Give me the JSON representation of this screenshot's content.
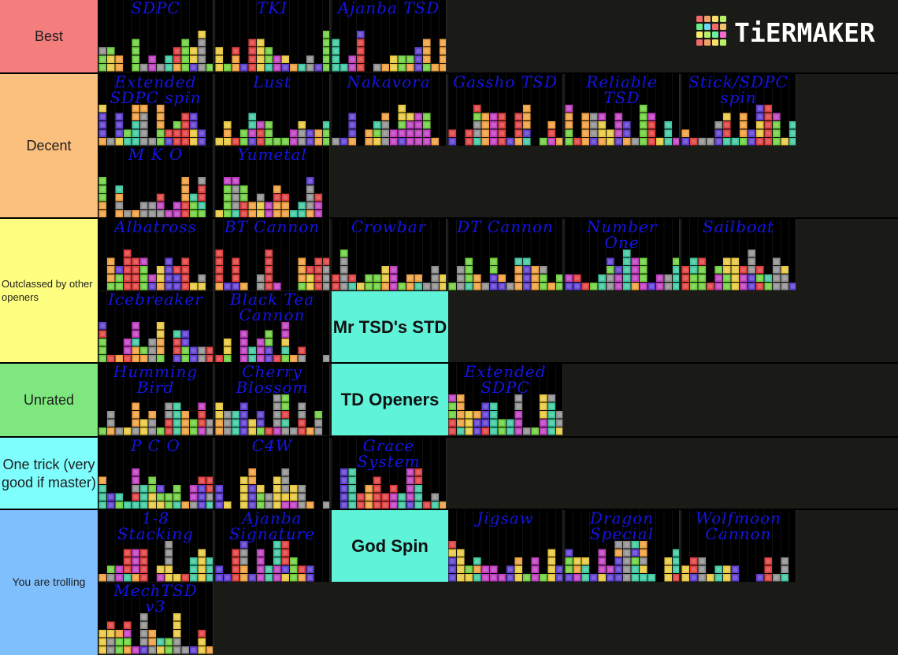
{
  "logo": {
    "text": "TiERMAKER",
    "grid_colors": [
      "#f06a6a",
      "#f0a06a",
      "#f6e06a",
      "#b8f06a",
      "#6af08a",
      "#6ad8f0",
      "#f06a6a",
      "#f0c06a",
      "#f6f06a",
      "#b8f06a",
      "#6af0a0",
      "#f06ad0"
    ]
  },
  "tiers": [
    {
      "label": "Best",
      "color": "#f47e7e",
      "font_size": 18,
      "items": [
        {
          "type": "image",
          "name": "SDPC"
        },
        {
          "type": "image",
          "name": "TKI"
        },
        {
          "type": "image",
          "name": "Ajanba TSD"
        }
      ]
    },
    {
      "label": "Decent",
      "color": "#fbbf7e",
      "font_size": 18,
      "items": [
        {
          "type": "image",
          "name": "Extended\nSDPC spin"
        },
        {
          "type": "image",
          "name": "Lust"
        },
        {
          "type": "image",
          "name": "Nakavora"
        },
        {
          "type": "image",
          "name": "Gassho TSD"
        },
        {
          "type": "image",
          "name": "Reliable\nTSD"
        },
        {
          "type": "image",
          "name": "Stick/SDPC\nspin"
        },
        {
          "type": "image",
          "name": "M K O"
        },
        {
          "type": "image",
          "name": "Yumetal"
        }
      ]
    },
    {
      "label": "Outclassed by other openers",
      "color": "#fefe80",
      "font_size": 13,
      "align": "left",
      "items": [
        {
          "type": "image",
          "name": "Albatross"
        },
        {
          "type": "image",
          "name": "BT Cannon"
        },
        {
          "type": "image",
          "name": "Crowbar"
        },
        {
          "type": "image",
          "name": "DT Cannon"
        },
        {
          "type": "image",
          "name": "Number One"
        },
        {
          "type": "image",
          "name": "Sailboat"
        },
        {
          "type": "image",
          "name": "Icebreaker"
        },
        {
          "type": "image",
          "name": "Black Tea\nCannon"
        },
        {
          "type": "text",
          "name": "Mr TSD's STD"
        }
      ]
    },
    {
      "label": "Unrated",
      "color": "#7ee87e",
      "font_size": 18,
      "items": [
        {
          "type": "image",
          "name": "Humming\nBird"
        },
        {
          "type": "image",
          "name": "Cherry\nBlossom"
        },
        {
          "type": "text",
          "name": "TD Openers"
        },
        {
          "type": "image",
          "name": "Extended\nSDPC"
        }
      ]
    },
    {
      "label": "One trick (very good if master)",
      "color": "#7ffefe",
      "font_size": 18,
      "items": [
        {
          "type": "image",
          "name": "P C O"
        },
        {
          "type": "image",
          "name": "C4W"
        },
        {
          "type": "image",
          "name": "Grace System"
        }
      ]
    },
    {
      "label": "You are trolling",
      "color": "#80bffe",
      "font_size": 14,
      "items": [
        {
          "type": "image",
          "name": "1-8 Stacking"
        },
        {
          "type": "image",
          "name": "Ajanba\nSignature"
        },
        {
          "type": "text",
          "name": "God Spin"
        },
        {
          "type": "image",
          "name": "Jigsaw"
        },
        {
          "type": "image",
          "name": "Dragon\nSpecial"
        },
        {
          "type": "image",
          "name": "Wolfmoon\nCannon"
        },
        {
          "type": "image",
          "name": "MechTSD v3"
        }
      ]
    }
  ],
  "piece_colors": [
    "#e04040",
    "#f0a040",
    "#e8c840",
    "#70d040",
    "#40c8a0",
    "#6040d0",
    "#c040c0",
    "#909090"
  ]
}
